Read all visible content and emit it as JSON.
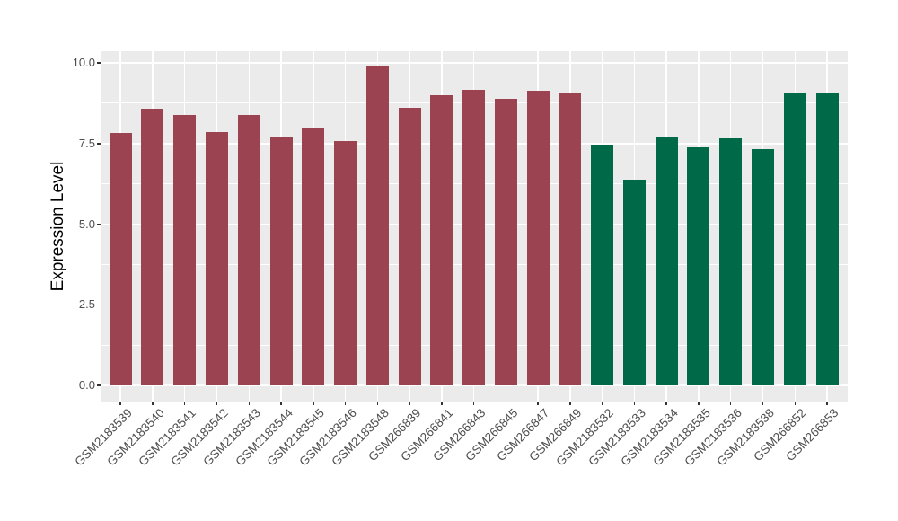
{
  "chart_data": {
    "type": "bar",
    "title": "",
    "xlabel": "",
    "ylabel": "Expression Level",
    "categories": [
      "GSM2183539",
      "GSM2183540",
      "GSM2183541",
      "GSM2183542",
      "GSM2183543",
      "GSM2183544",
      "GSM2183545",
      "GSM2183546",
      "GSM2183548",
      "GSM266839",
      "GSM266841",
      "GSM266843",
      "GSM266845",
      "GSM266847",
      "GSM266849",
      "GSM2183532",
      "GSM2183533",
      "GSM2183534",
      "GSM2183535",
      "GSM2183536",
      "GSM2183538",
      "GSM266852",
      "GSM266853"
    ],
    "values": [
      7.82,
      8.58,
      8.39,
      7.85,
      8.39,
      7.7,
      8.0,
      7.57,
      9.89,
      8.6,
      9.0,
      9.16,
      8.88,
      9.13,
      9.04,
      7.46,
      6.39,
      7.68,
      7.38,
      7.67,
      7.32,
      9.05,
      9.05
    ],
    "groups": [
      0,
      0,
      0,
      0,
      0,
      0,
      0,
      0,
      0,
      0,
      0,
      0,
      0,
      0,
      0,
      1,
      1,
      1,
      1,
      1,
      1,
      1,
      1
    ],
    "group_colors": [
      "#9B4351",
      "#006948"
    ],
    "y_tick_values": [
      0,
      2.5,
      5,
      7.5,
      10
    ],
    "y_tick_labels": [
      "0.0",
      "2.5",
      "5.0",
      "7.5",
      "10.0"
    ],
    "y_minor_values": [
      1.25,
      3.75,
      6.25,
      8.75
    ],
    "ylim": [
      -0.5,
      10.38
    ],
    "grid": true,
    "legend_position": "none",
    "panel_background": "#EBEBEB",
    "gridline_color": "#FFFFFF",
    "axis_text_color": "#4D4D4D"
  }
}
